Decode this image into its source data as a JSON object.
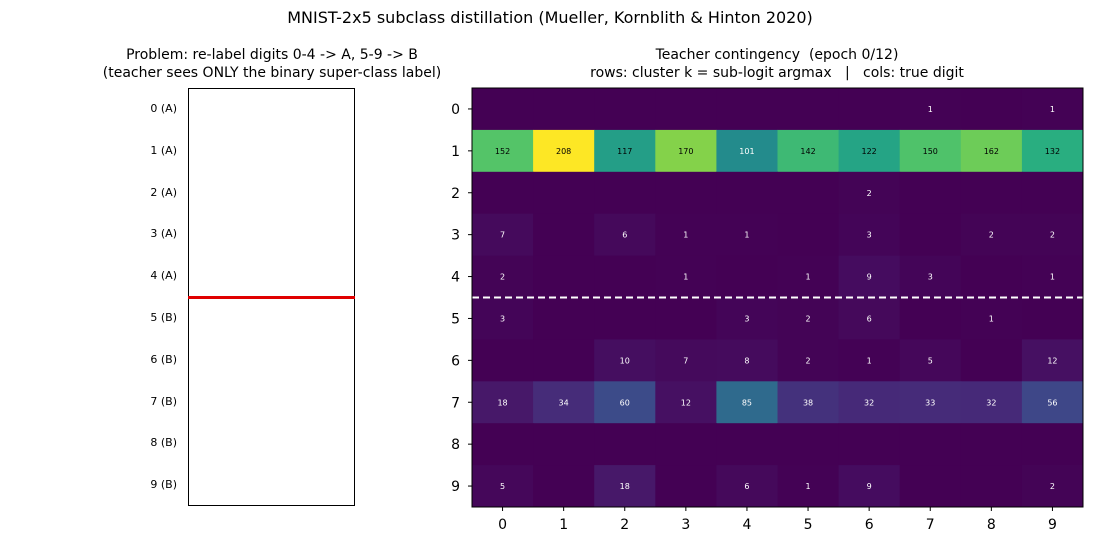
{
  "figure": {
    "suptitle": "MNIST-2x5 subclass distillation  (Mueller, Kornblith & Hinton 2020)",
    "left_title": "Problem: re-label digits 0-4 -> A, 5-9 -> B\n(teacher sees ONLY the binary super-class label)",
    "right_title": "Teacher contingency  (epoch 0/12)\nrows: cluster k = sub-logit argmax   |   cols: true digit"
  },
  "digit_rows": [
    {
      "label": "0  (A)",
      "digit": "0"
    },
    {
      "label": "1  (A)",
      "digit": "1"
    },
    {
      "label": "2  (A)",
      "digit": "2"
    },
    {
      "label": "3  (A)",
      "digit": "3"
    },
    {
      "label": "4  (A)",
      "digit": "4"
    },
    {
      "label": "5  (B)",
      "digit": "5"
    },
    {
      "label": "6  (B)",
      "digit": "6"
    },
    {
      "label": "7  (B)",
      "digit": "7"
    },
    {
      "label": "8  (B)",
      "digit": "8"
    },
    {
      "label": "9  (B)",
      "digit": "9"
    }
  ],
  "colors": {
    "separator_left": "#e00000",
    "separator_right": "#ffffff"
  },
  "chart_data": {
    "type": "heatmap",
    "title": "Teacher contingency  (epoch 0/12)",
    "xlabel": "",
    "ylabel": "",
    "x_ticks": [
      "0",
      "1",
      "2",
      "3",
      "4",
      "5",
      "6",
      "7",
      "8",
      "9"
    ],
    "y_ticks": [
      "0",
      "1",
      "2",
      "3",
      "4",
      "5",
      "6",
      "7",
      "8",
      "9"
    ],
    "colormap": "viridis",
    "vmax": 208,
    "separator_after_row": 4,
    "values": [
      [
        0,
        0,
        0,
        0,
        0,
        0,
        0,
        1,
        0,
        1
      ],
      [
        152,
        208,
        117,
        170,
        101,
        142,
        122,
        150,
        162,
        132
      ],
      [
        0,
        0,
        0,
        0,
        0,
        0,
        2,
        0,
        0,
        0
      ],
      [
        7,
        0,
        6,
        1,
        1,
        0,
        3,
        0,
        2,
        2
      ],
      [
        2,
        0,
        0,
        1,
        0,
        1,
        9,
        3,
        0,
        1
      ],
      [
        3,
        0,
        0,
        0,
        3,
        2,
        6,
        0,
        1,
        0
      ],
      [
        0,
        0,
        10,
        7,
        8,
        2,
        1,
        5,
        0,
        12
      ],
      [
        18,
        34,
        60,
        12,
        85,
        38,
        32,
        33,
        32,
        56
      ],
      [
        0,
        0,
        0,
        0,
        0,
        0,
        0,
        0,
        0,
        0
      ],
      [
        5,
        0,
        18,
        0,
        6,
        1,
        9,
        0,
        0,
        2
      ]
    ]
  }
}
